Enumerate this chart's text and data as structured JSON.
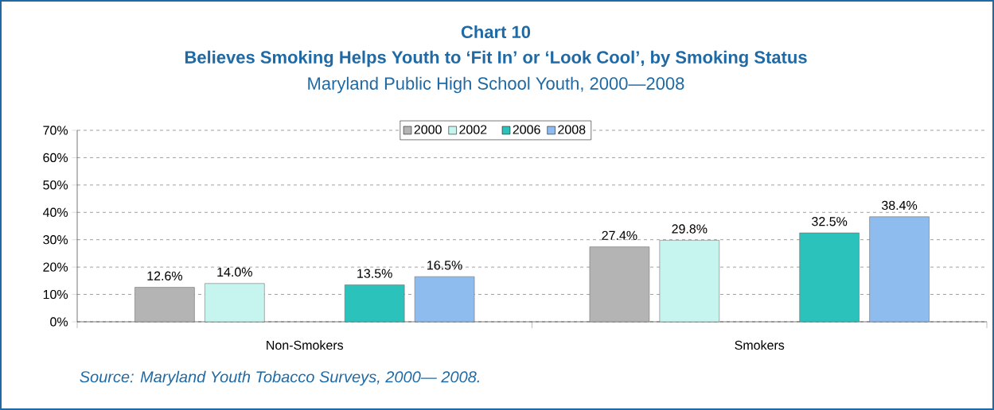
{
  "chart_data": {
    "type": "bar",
    "title": "Chart 10",
    "subtitle": "Believes  Smoking Helps Youth to ‘Fit In’ or ‘Look Cool’, by Smoking Status",
    "annotations": [
      "Maryland Public High School Youth, 2000—2008",
      "Source: Maryland Youth Tobacco Surveys, 2000— 2008."
    ],
    "categories": [
      "Non-Smokers",
      "Smokers"
    ],
    "series": [
      {
        "name": "2000",
        "color": "#b4b4b4",
        "values": [
          12.6,
          27.4
        ],
        "value_labels": [
          "12.6%",
          "27.4%"
        ]
      },
      {
        "name": "2002",
        "color": "#c6f5f0",
        "values": [
          14.0,
          29.8
        ],
        "value_labels": [
          "14.0%",
          "29.8%"
        ]
      },
      {
        "values": [
          null,
          null
        ]
      },
      {
        "name": "2006",
        "color": "#2bc2bc",
        "values": [
          13.5,
          32.5
        ],
        "value_labels": [
          "13.5%",
          "32.5%"
        ]
      },
      {
        "name": "2008",
        "color": "#8ebcef",
        "values": [
          16.5,
          38.4
        ],
        "value_labels": [
          "16.5%",
          "38.4%"
        ]
      }
    ],
    "ylim": [
      0,
      70
    ],
    "yticks": [
      {
        "value": 0,
        "label": "0%"
      },
      {
        "value": 10,
        "label": "10%"
      },
      {
        "value": 20,
        "label": "20%"
      },
      {
        "value": 30,
        "label": "30%"
      },
      {
        "value": 40,
        "label": "40%"
      },
      {
        "value": 50,
        "label": "50%"
      },
      {
        "value": 60,
        "label": "60%"
      },
      {
        "value": 70,
        "label": "70%"
      }
    ],
    "grid": "y",
    "legend": "top"
  }
}
